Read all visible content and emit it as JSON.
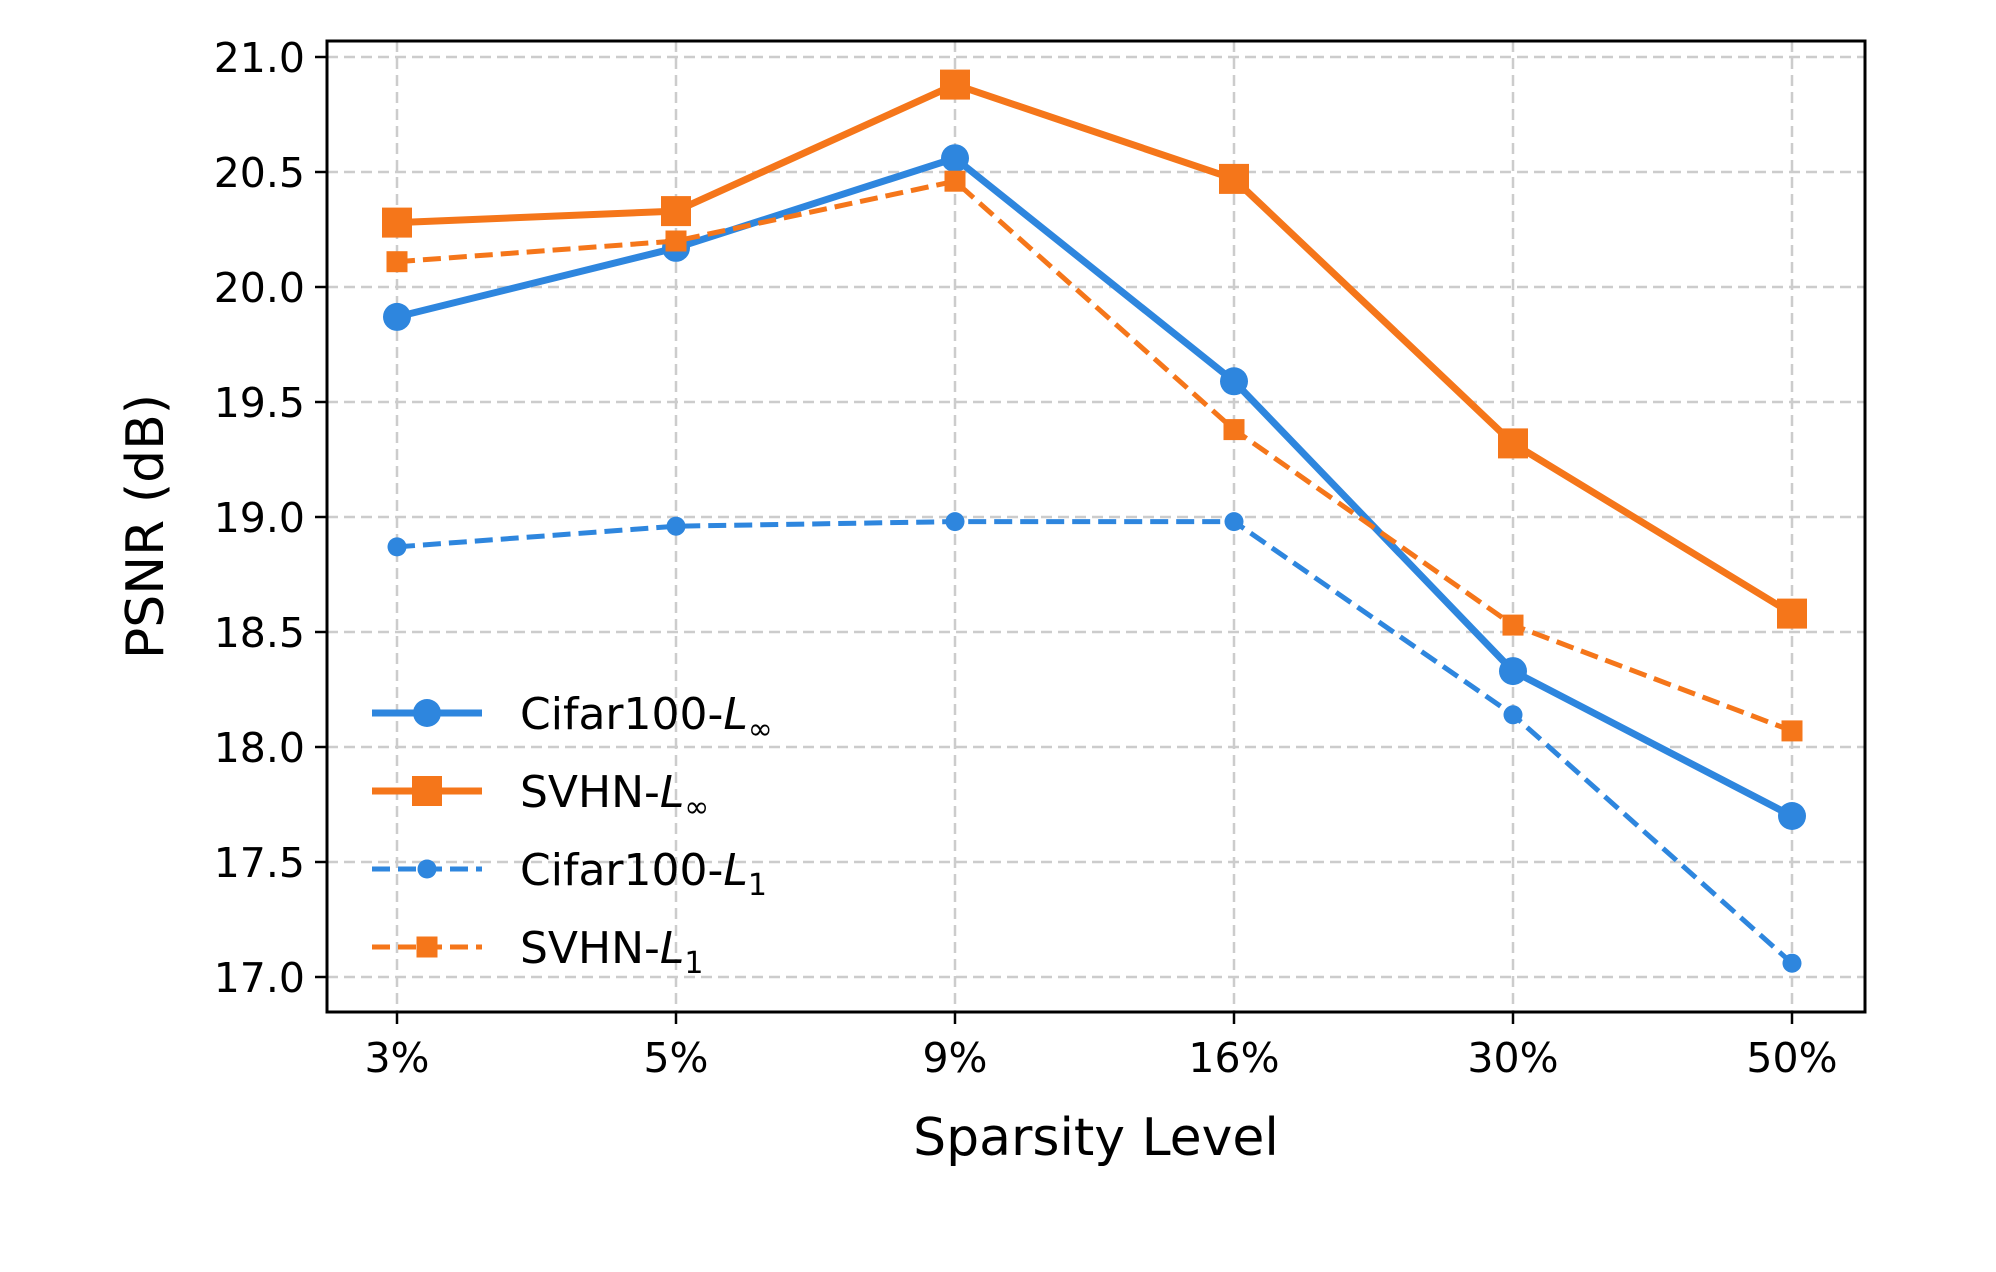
{
  "chart_data": {
    "type": "line",
    "title": "",
    "xlabel": "Sparsity Level",
    "ylabel": "PSNR (dB)",
    "categories": [
      "3%",
      "5%",
      "9%",
      "16%",
      "30%",
      "50%"
    ],
    "ylim": [
      16.95,
      21.07
    ],
    "yticks": [
      "17.0",
      "17.5",
      "18.0",
      "18.5",
      "19.0",
      "19.5",
      "20.0",
      "20.5",
      "21.0"
    ],
    "ytick_values": [
      17.0,
      17.5,
      18.0,
      18.5,
      19.0,
      19.5,
      20.0,
      20.5,
      21.0
    ],
    "grid": true,
    "legend_position": "lower-left",
    "series": [
      {
        "name": "Cifar100-L∞",
        "label_base": "Cifar100-",
        "label_var": "L",
        "label_sub": "∞",
        "color": "#2e86de",
        "style": "solid",
        "marker": "circle",
        "values": [
          19.87,
          20.17,
          20.56,
          19.59,
          18.33,
          17.7
        ]
      },
      {
        "name": "SVHN-L∞",
        "label_base": "SVHN-",
        "label_var": "L",
        "label_sub": "∞",
        "color": "#f5761a",
        "style": "solid",
        "marker": "square",
        "values": [
          20.28,
          20.33,
          20.88,
          20.47,
          19.32,
          18.58
        ]
      },
      {
        "name": "Cifar100-L1",
        "label_base": "Cifar100-",
        "label_var": "L",
        "label_sub": "1",
        "color": "#2e86de",
        "style": "dashed",
        "marker": "circle",
        "values": [
          18.87,
          18.96,
          18.98,
          18.98,
          18.14,
          17.06
        ]
      },
      {
        "name": "SVHN-L1",
        "label_base": "SVHN-",
        "label_var": "L",
        "label_sub": "1",
        "color": "#f5761a",
        "style": "dashed",
        "marker": "square",
        "values": [
          20.11,
          20.2,
          20.46,
          19.38,
          18.53,
          18.07
        ]
      }
    ]
  }
}
